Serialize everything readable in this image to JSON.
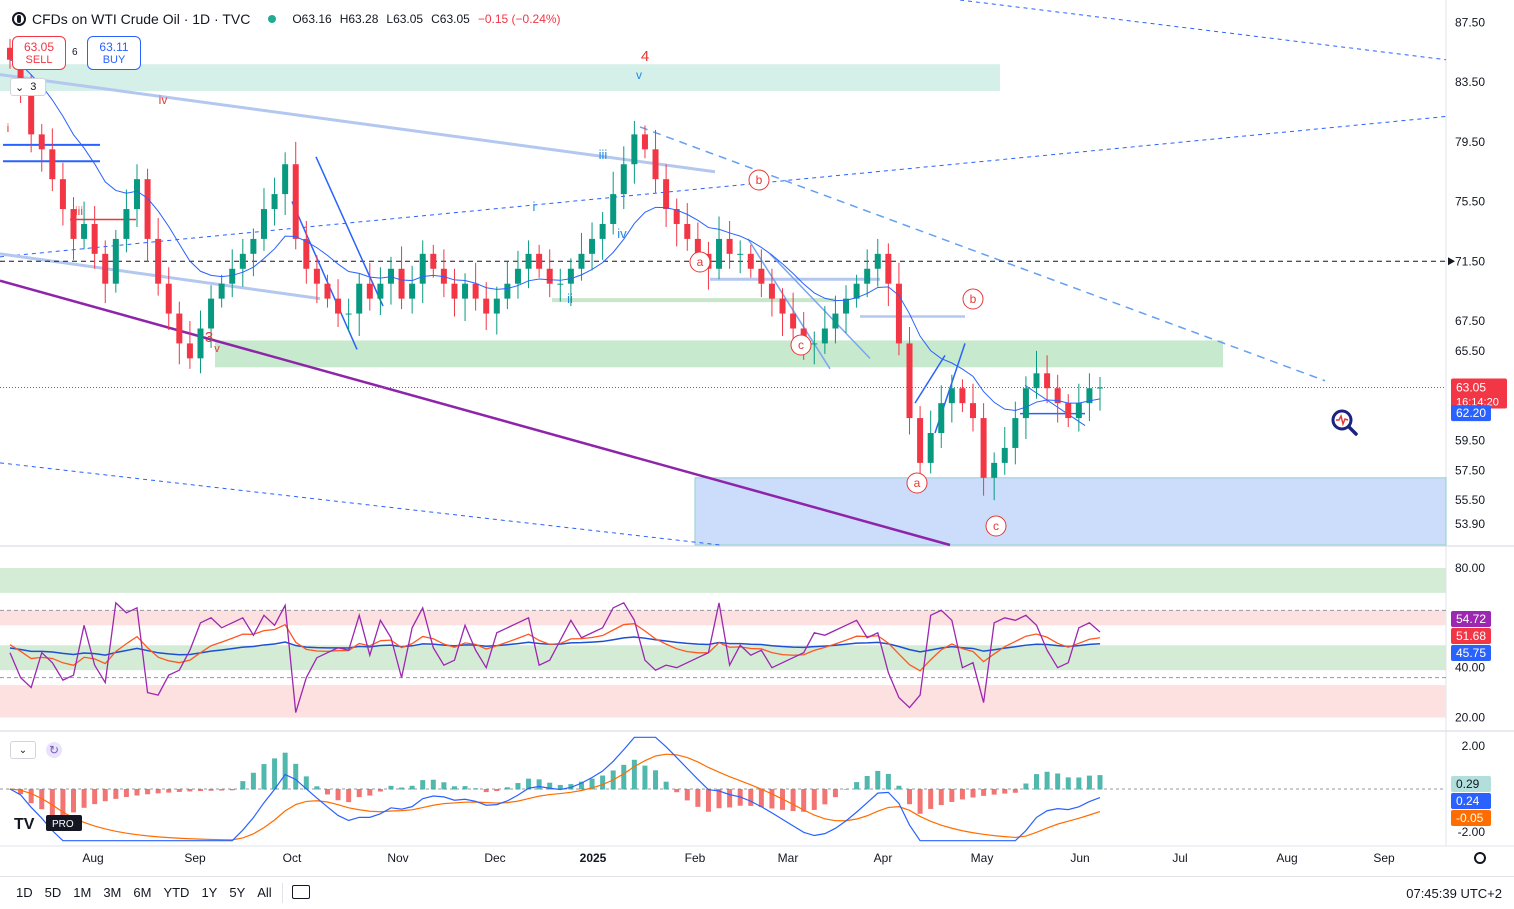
{
  "header": {
    "title": "CFDs on WTI Crude Oil · 1D · TVC",
    "open": "O63.16",
    "high": "H63.28",
    "low": "L63.05",
    "close": "C63.05",
    "change": "−0.15 (−0.24%)"
  },
  "trade": {
    "sell_price": "63.05",
    "sell_label": "SELL",
    "buy_price": "63.11",
    "buy_label": "BUY",
    "spread": "6"
  },
  "wave_ctrl_num": "3",
  "bottom": {
    "ranges": [
      "1D",
      "5D",
      "1M",
      "3M",
      "6M",
      "YTD",
      "1Y",
      "5Y",
      "All"
    ],
    "clock": "07:45:39 UTC+2"
  },
  "colors": {
    "up": "#089981",
    "down": "#f23645",
    "ma": "#2962ff",
    "rsi": "#9c27b0",
    "rsi_ma": "#ff5722",
    "wave_red": "#e53935",
    "wave_blue": "#1e88e5",
    "green_zone": "#c8e6c9",
    "blue_zone": "#bbdefb"
  },
  "chart_data": [
    {
      "type": "candlestick",
      "x_ticks": [
        "Aug",
        "Sep",
        "Oct",
        "Nov",
        "Dec",
        "2025",
        "Feb",
        "Mar",
        "Apr",
        "May",
        "Jun",
        "Jul",
        "Aug",
        "Sep"
      ],
      "y_ticks": [
        87.5,
        83.5,
        79.5,
        75.5,
        71.5,
        67.5,
        65.5,
        59.5,
        57.5,
        55.5,
        53.9
      ],
      "ylim": [
        52.5,
        89.0
      ],
      "last_price": 63.05,
      "countdown": "16:14:20",
      "ma_value": 62.2,
      "horizontal_level": 71.5,
      "wave_labels_red": [
        "3",
        "4",
        "iii",
        "iv",
        "i",
        "a",
        "b",
        "c",
        "a",
        "b",
        "c"
      ],
      "wave_labels_blue": [
        "v",
        "v",
        "i",
        "ii",
        "iii",
        "iv"
      ],
      "closes_approx": [
        85,
        83,
        80,
        79,
        77,
        75,
        73,
        74,
        72,
        70,
        73,
        75,
        77,
        73,
        70,
        68,
        66,
        65,
        67,
        69,
        70,
        71,
        72,
        73,
        75,
        76,
        78,
        73,
        71,
        70,
        69,
        68,
        68,
        70,
        69,
        70,
        71,
        69,
        70,
        72,
        71,
        70,
        69,
        70,
        69,
        68,
        69,
        70,
        71,
        72,
        71,
        70,
        70,
        71,
        72,
        73,
        74,
        76,
        78,
        80,
        79,
        77,
        75,
        74,
        73,
        72,
        71,
        73,
        72,
        72,
        71,
        70,
        69,
        68,
        67,
        66,
        66,
        67,
        68,
        69,
        70,
        71,
        72,
        70,
        66,
        61,
        58,
        60,
        62,
        63,
        62,
        61,
        57,
        58,
        59,
        61,
        63,
        64,
        63,
        62,
        61,
        62,
        63,
        63.05
      ]
    },
    {
      "type": "line",
      "name": "RSI",
      "y_ticks": [
        80.0,
        40.0,
        20.0
      ],
      "ylim": [
        15,
        88
      ],
      "values_current": {
        "rsi": 54.72,
        "rsi_ma": 51.68,
        "slow": 45.75
      }
    },
    {
      "type": "bar",
      "name": "MACD",
      "y_ticks": [
        2.0,
        -2.0
      ],
      "ylim": [
        -2.6,
        2.6
      ],
      "values_current": {
        "hist": 0.29,
        "macd": 0.24,
        "signal": -0.05
      }
    }
  ]
}
